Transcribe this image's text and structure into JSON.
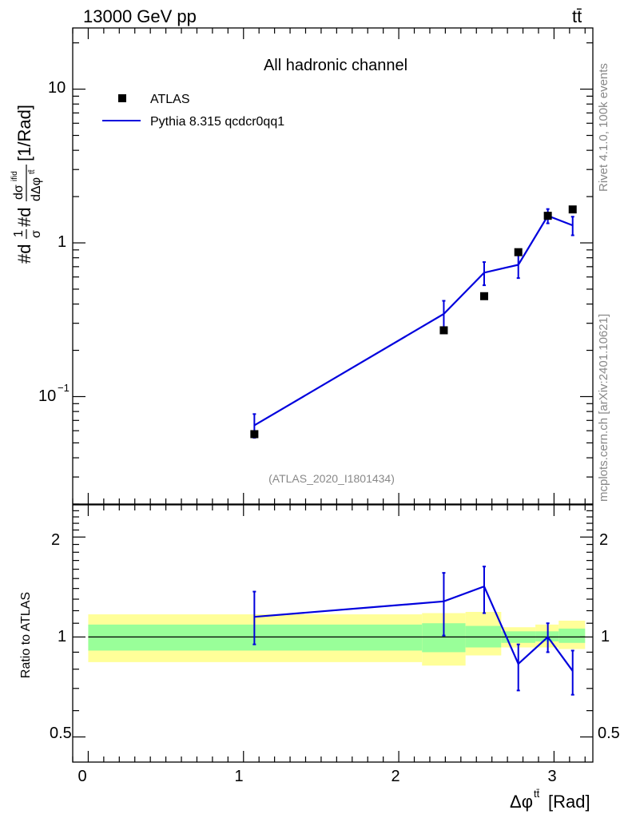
{
  "header": {
    "energy_label": "13000 GeV pp",
    "process_label": "tt̄"
  },
  "side_labels": {
    "rivet": "Rivet 4.1.0,  100k events",
    "mcplots": "mcplots.cern.ch [arXiv:2401.10621]"
  },
  "colors": {
    "mc_line": "#0000dd",
    "data_marker": "#000000",
    "band_inner": "#99ff99",
    "band_outer": "#ffff99"
  },
  "chart_data": [
    {
      "type": "scatter",
      "title": "All hadronic channel",
      "analysis_label": "(ATLAS_2020_I1801434)",
      "ylabel_parts": {
        "prefix": "#d",
        "frac1_num": "1",
        "frac1_den": "σ",
        "mid": "#d",
        "frac2_num": "dσ",
        "frac2_num_sup": "ifid",
        "frac2_den": "dΔφ",
        "frac2_den_sup": "tt̄",
        "unit": "[1/Rad]"
      },
      "xlim": [
        -0.1,
        3.25
      ],
      "ylim_log": [
        0.02,
        25
      ],
      "y_tick_labels": [
        {
          "value": 0.1,
          "base": "10",
          "exp": "−1"
        },
        {
          "value": 1,
          "base": "1",
          "exp": ""
        },
        {
          "value": 10,
          "base": "10",
          "exp": ""
        }
      ],
      "legend": [
        {
          "name": "ATLAS",
          "kind": "marker"
        },
        {
          "name": "Pythia 8.315 qcdcr0qq1",
          "kind": "line"
        }
      ],
      "series": [
        {
          "name": "ATLAS",
          "x": [
            1.07,
            2.29,
            2.55,
            2.77,
            2.96,
            3.12
          ],
          "y": [
            0.057,
            0.27,
            0.45,
            0.87,
            1.5,
            1.65
          ]
        },
        {
          "name": "Pythia 8.315 qcdcr0qq1",
          "x": [
            1.07,
            2.29,
            2.55,
            2.77,
            2.96,
            3.12
          ],
          "y": [
            0.065,
            0.345,
            0.64,
            0.72,
            1.5,
            1.3
          ],
          "yerr_low": [
            0.011,
            0.07,
            0.11,
            0.13,
            0.16,
            0.18
          ],
          "yerr_high": [
            0.012,
            0.075,
            0.11,
            0.13,
            0.16,
            0.18
          ]
        }
      ]
    },
    {
      "type": "line",
      "ylabel": "Ratio to ATLAS",
      "xlabel_parts": {
        "main": "Δφ",
        "sup": "tt̄",
        "unit": "[Rad]"
      },
      "xlim": [
        -0.1,
        3.25
      ],
      "ylim_log": [
        0.42,
        2.5
      ],
      "x_tick_labels": [
        "0",
        "1",
        "2",
        "3"
      ],
      "y_tick_labels": [
        "0.5",
        "1",
        "2"
      ],
      "mc_ratio": {
        "x": [
          1.07,
          2.29,
          2.55,
          2.77,
          2.96,
          3.12
        ],
        "y": [
          1.15,
          1.28,
          1.42,
          0.83,
          1.0,
          0.79
        ],
        "yerr_low": [
          0.2,
          0.27,
          0.24,
          0.14,
          0.1,
          0.12
        ],
        "yerr_high": [
          0.22,
          0.28,
          0.21,
          0.12,
          0.1,
          0.12
        ]
      },
      "uncertainty_bins": {
        "edges": [
          0.0,
          2.15,
          2.43,
          2.66,
          2.88,
          3.03,
          3.2
        ],
        "inner_low": [
          0.91,
          0.9,
          0.93,
          0.96,
          0.97,
          0.96
        ],
        "inner_high": [
          1.09,
          1.1,
          1.08,
          1.04,
          1.04,
          1.06
        ],
        "outer_low": [
          0.84,
          0.82,
          0.88,
          0.93,
          0.93,
          0.92
        ],
        "outer_high": [
          1.17,
          1.18,
          1.19,
          1.07,
          1.09,
          1.12
        ]
      }
    }
  ]
}
